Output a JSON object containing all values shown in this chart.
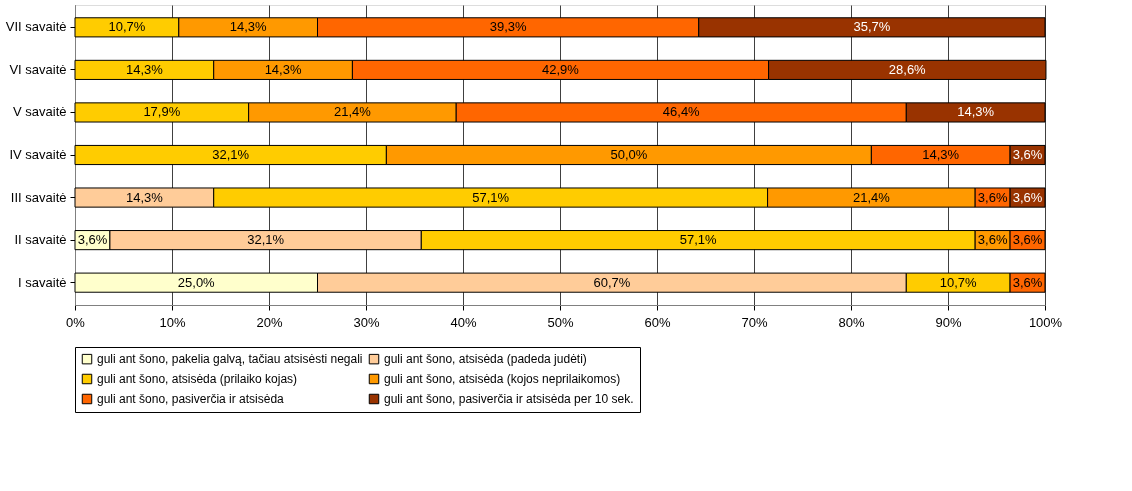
{
  "chart_data": {
    "type": "bar",
    "orientation": "horizontal",
    "stacked": true,
    "categories": [
      "VII savaitė",
      "VI savaitė",
      "V savaitė",
      "IV savaitė",
      "III savaitė",
      "II savaitė",
      "I savaitė"
    ],
    "series": [
      {
        "name": "guli ant šono, pakelia galvą, tačiau atsisėsti negali",
        "color": "#ffffcc",
        "values": [
          null,
          null,
          null,
          null,
          null,
          3.6,
          25.0
        ],
        "value_labels": [
          null,
          null,
          null,
          null,
          null,
          "3,6%",
          "25,0%"
        ]
      },
      {
        "name": "guli ant šono, atsisėda (padeda judėti)",
        "color": "#ffcc99",
        "values": [
          null,
          null,
          null,
          null,
          14.3,
          32.1,
          60.7
        ],
        "value_labels": [
          null,
          null,
          null,
          null,
          "14,3%",
          "32,1%",
          "60,7%"
        ]
      },
      {
        "name": "guli ant šono, atsisėda (prilaiko kojas)",
        "color": "#ffcc00",
        "values": [
          10.7,
          14.3,
          17.9,
          32.1,
          57.1,
          57.1,
          10.7
        ],
        "value_labels": [
          "10,7%",
          "14,3%",
          "17,9%",
          "32,1%",
          "57,1%",
          "57,1%",
          "10,7%"
        ]
      },
      {
        "name": "guli ant šono, atsisėda (kojos neprilaikomos)",
        "color": "#ff9900",
        "values": [
          14.3,
          14.3,
          21.4,
          50.0,
          21.4,
          3.6,
          null
        ],
        "value_labels": [
          "14,3%",
          "14,3%",
          "21,4%",
          "50,0%",
          "21,4%",
          "3,6%",
          null
        ]
      },
      {
        "name": "guli ant šono, pasiverčia ir atsisėda",
        "color": "#ff6600",
        "values": [
          39.3,
          42.9,
          46.4,
          14.3,
          3.6,
          3.6,
          3.6
        ],
        "value_labels": [
          "39,3%",
          "42,9%",
          "46,4%",
          "14,3%",
          "3,6%",
          "3,6%",
          "3,6%"
        ]
      },
      {
        "name": "guli ant šono, pasiverčia ir atsisėda per 10 sek.",
        "color": "#993300",
        "values": [
          35.7,
          28.6,
          14.3,
          3.6,
          3.6,
          null,
          null
        ],
        "value_labels": [
          "35,7%",
          "28,6%",
          "14,3%",
          "3,6%",
          "3,6%",
          null,
          null
        ]
      }
    ],
    "xlim": [
      0,
      100
    ],
    "xticks": [
      {
        "value": 0,
        "label": "0%"
      },
      {
        "value": 10,
        "label": "10%"
      },
      {
        "value": 20,
        "label": "20%"
      },
      {
        "value": 30,
        "label": "30%"
      },
      {
        "value": 40,
        "label": "40%"
      },
      {
        "value": 50,
        "label": "50%"
      },
      {
        "value": 60,
        "label": "60%"
      },
      {
        "value": 70,
        "label": "70%"
      },
      {
        "value": 80,
        "label": "80%"
      },
      {
        "value": 90,
        "label": "90%"
      },
      {
        "value": 100,
        "label": "100%"
      }
    ],
    "grid": "x",
    "legend": "bottom"
  }
}
